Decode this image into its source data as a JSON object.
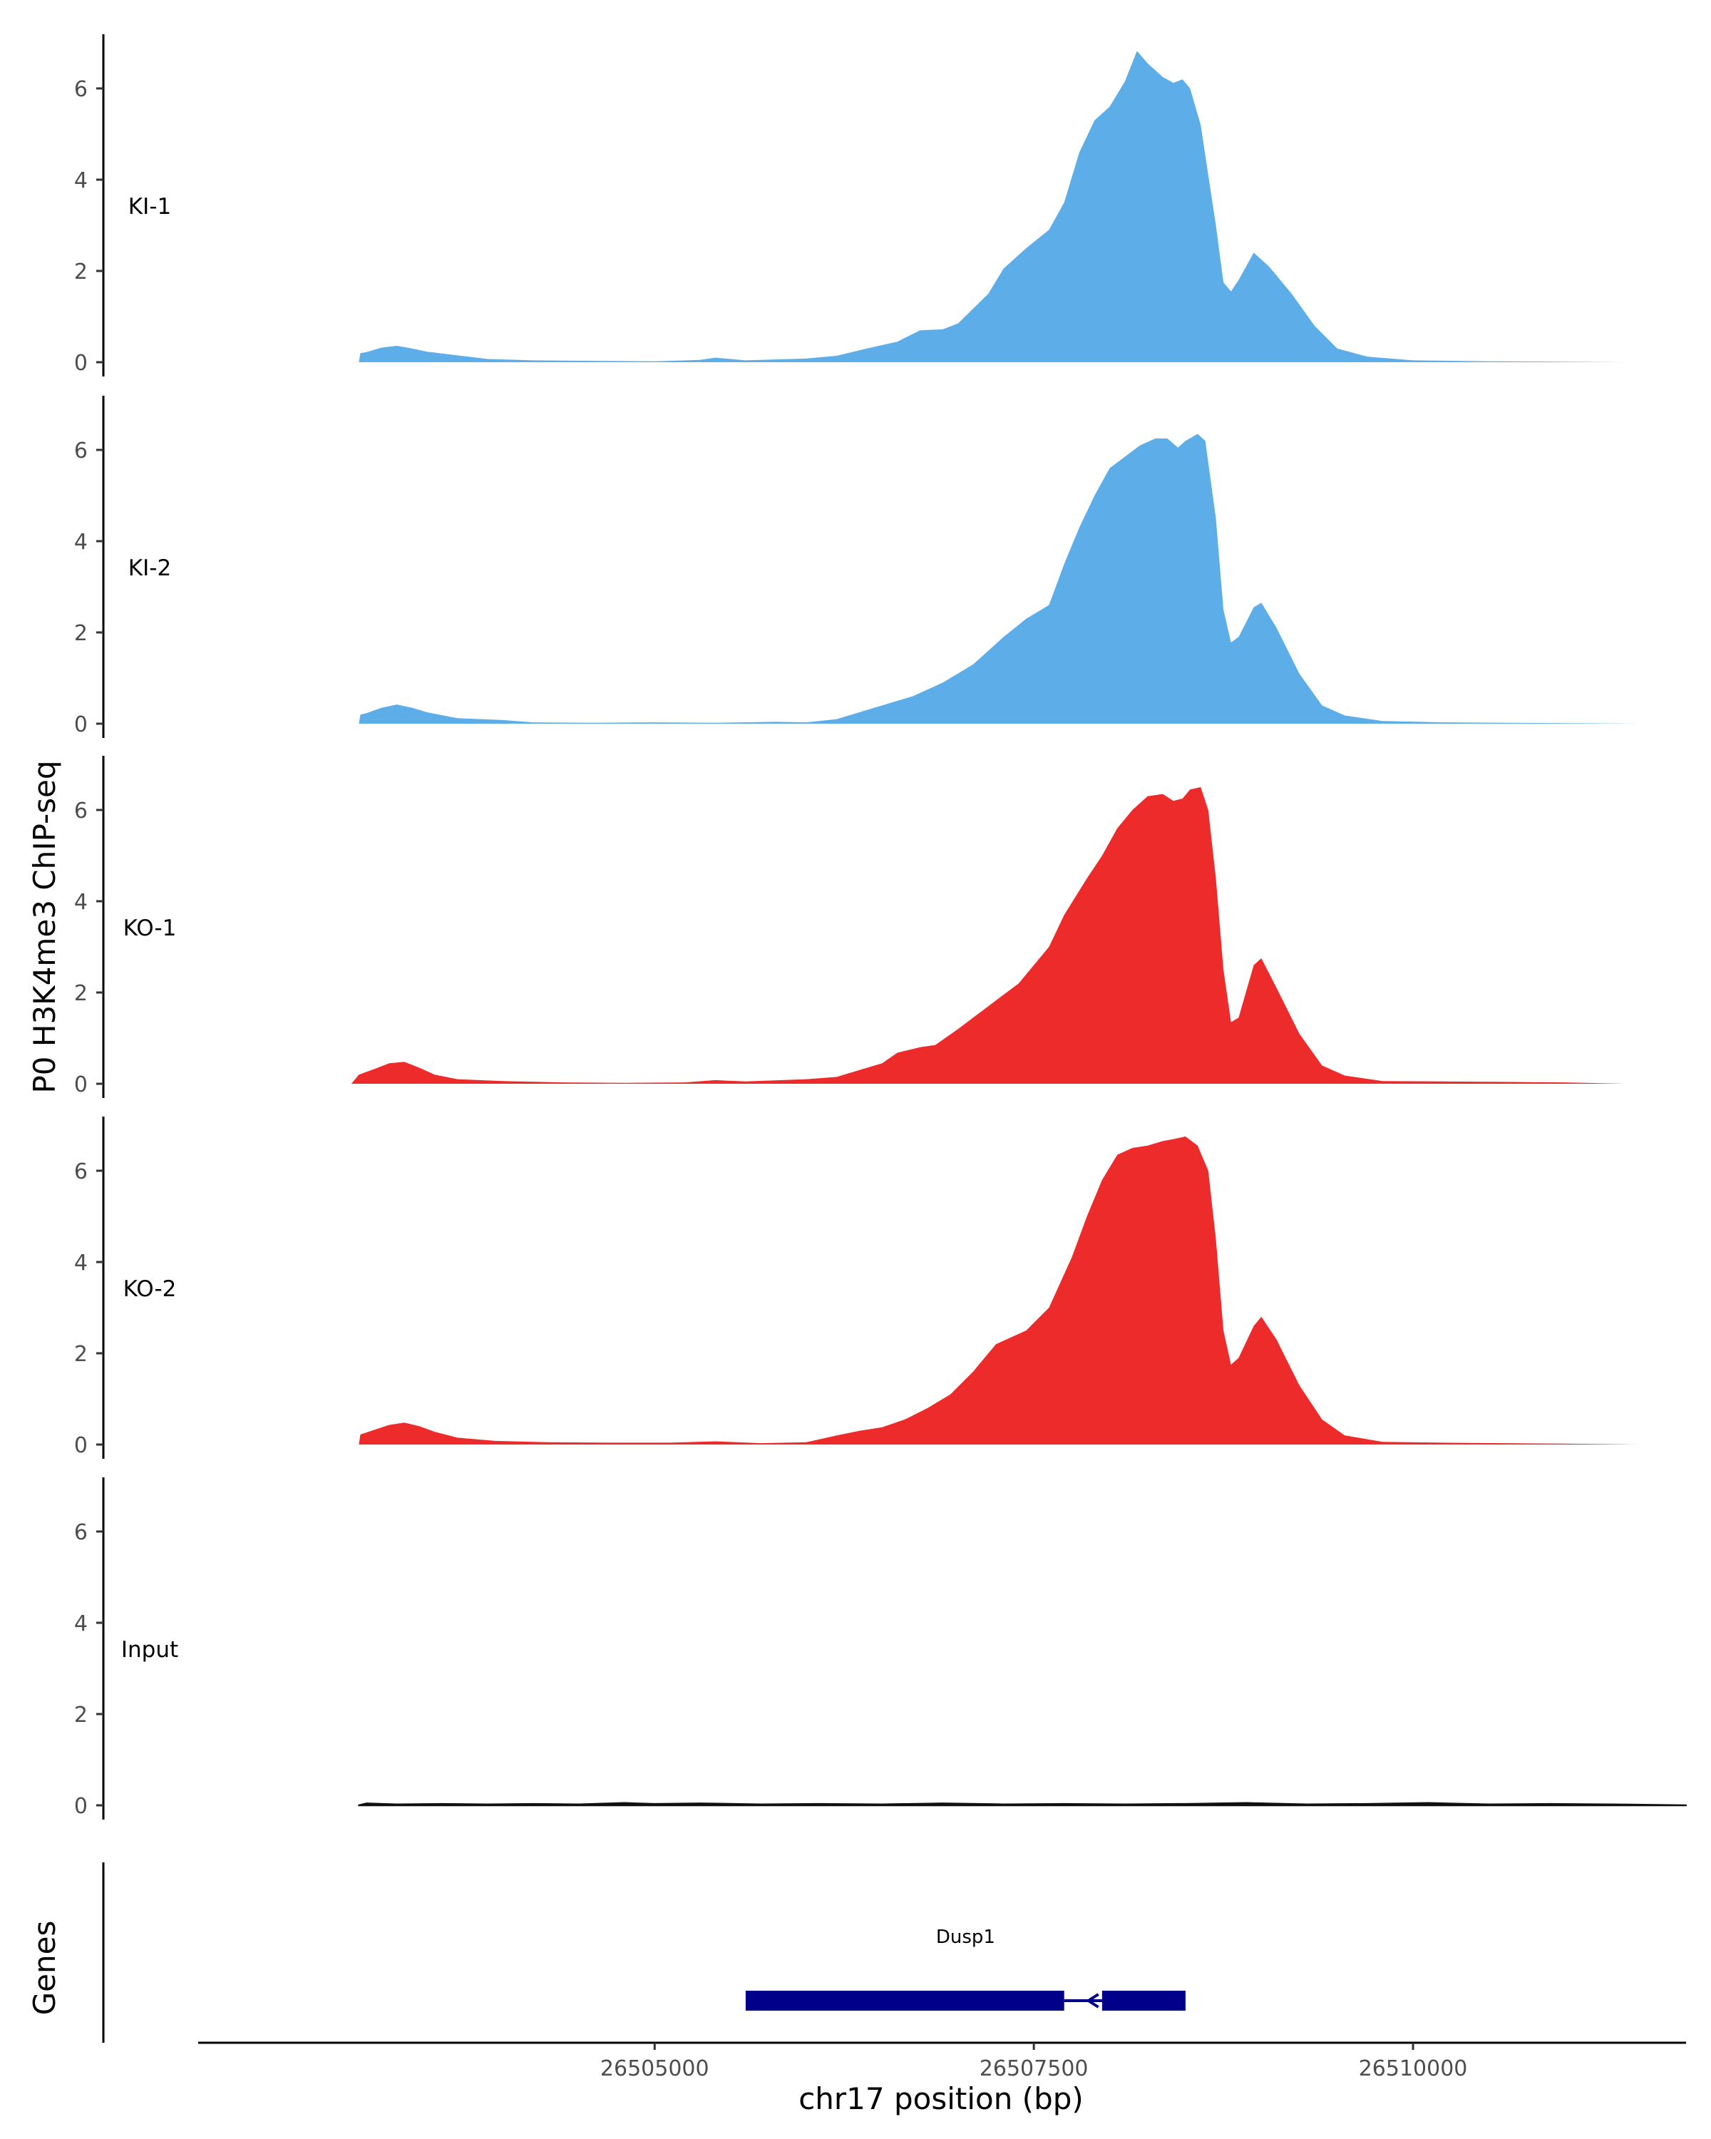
{
  "chart_data": {
    "type": "area",
    "y_axis_title": "P0 H3K4me3 ChIP-seq",
    "x_axis_title": "chr17 position (bp)",
    "genes_axis_title": "Genes",
    "xlim": [
      26502000,
      26511800
    ],
    "ylim": [
      0,
      7.1
    ],
    "y_ticks": [
      0,
      2,
      4,
      6
    ],
    "x_ticks": [
      26505000,
      26507500,
      26510000
    ],
    "x_tick_labels": [
      "26505000",
      "26507500",
      "26510000"
    ],
    "colors": {
      "KI": "#5dade9",
      "KO": "#ee2b2b",
      "Input": "#111111",
      "gene": "#00008b"
    },
    "tracks": [
      {
        "name": "KI-1",
        "color": "#5dade9",
        "points": [
          [
            26503050,
            0
          ],
          [
            26503060,
            0.2
          ],
          [
            26503100,
            0.22
          ],
          [
            26503200,
            0.32
          ],
          [
            26503300,
            0.36
          ],
          [
            26503400,
            0.3
          ],
          [
            26503500,
            0.23
          ],
          [
            26503700,
            0.15
          ],
          [
            26503900,
            0.07
          ],
          [
            26504200,
            0.04
          ],
          [
            26504600,
            0.03
          ],
          [
            26505000,
            0.02
          ],
          [
            26505300,
            0.05
          ],
          [
            26505400,
            0.1
          ],
          [
            26505600,
            0.04
          ],
          [
            26506000,
            0.08
          ],
          [
            26506200,
            0.14
          ],
          [
            26506400,
            0.3
          ],
          [
            26506600,
            0.45
          ],
          [
            26506750,
            0.7
          ],
          [
            26506900,
            0.72
          ],
          [
            26507000,
            0.85
          ],
          [
            26507200,
            1.5
          ],
          [
            26507300,
            2.05
          ],
          [
            26507450,
            2.5
          ],
          [
            26507600,
            2.9
          ],
          [
            26507700,
            3.5
          ],
          [
            26507800,
            4.6
          ],
          [
            26507900,
            5.3
          ],
          [
            26508000,
            5.6
          ],
          [
            26508100,
            6.15
          ],
          [
            26508180,
            6.82
          ],
          [
            26508250,
            6.55
          ],
          [
            26508350,
            6.25
          ],
          [
            26508420,
            6.12
          ],
          [
            26508480,
            6.2
          ],
          [
            26508530,
            6.0
          ],
          [
            26508600,
            5.2
          ],
          [
            26508700,
            3.0
          ],
          [
            26508750,
            1.75
          ],
          [
            26508800,
            1.55
          ],
          [
            26508850,
            1.8
          ],
          [
            26508950,
            2.4
          ],
          [
            26509050,
            2.1
          ],
          [
            26509200,
            1.5
          ],
          [
            26509350,
            0.8
          ],
          [
            26509500,
            0.3
          ],
          [
            26509700,
            0.12
          ],
          [
            26510000,
            0.04
          ],
          [
            26510500,
            0.02
          ],
          [
            26511000,
            0.01
          ],
          [
            26511400,
            0
          ],
          [
            26511800,
            0
          ]
        ]
      },
      {
        "name": "KI-2",
        "color": "#5dade9",
        "points": [
          [
            26503050,
            0
          ],
          [
            26503060,
            0.2
          ],
          [
            26503100,
            0.23
          ],
          [
            26503200,
            0.35
          ],
          [
            26503300,
            0.42
          ],
          [
            26503400,
            0.35
          ],
          [
            26503500,
            0.25
          ],
          [
            26503700,
            0.12
          ],
          [
            26504000,
            0.08
          ],
          [
            26504200,
            0.03
          ],
          [
            26504600,
            0.02
          ],
          [
            26505000,
            0.03
          ],
          [
            26505400,
            0.02
          ],
          [
            26505800,
            0.04
          ],
          [
            26506000,
            0.03
          ],
          [
            26506200,
            0.1
          ],
          [
            26506400,
            0.3
          ],
          [
            26506700,
            0.6
          ],
          [
            26506900,
            0.9
          ],
          [
            26507100,
            1.3
          ],
          [
            26507300,
            1.9
          ],
          [
            26507450,
            2.3
          ],
          [
            26507600,
            2.6
          ],
          [
            26507700,
            3.5
          ],
          [
            26507800,
            4.3
          ],
          [
            26507900,
            5.0
          ],
          [
            26508000,
            5.6
          ],
          [
            26508100,
            5.85
          ],
          [
            26508200,
            6.1
          ],
          [
            26508300,
            6.25
          ],
          [
            26508380,
            6.25
          ],
          [
            26508450,
            6.05
          ],
          [
            26508500,
            6.2
          ],
          [
            26508580,
            6.35
          ],
          [
            26508630,
            6.2
          ],
          [
            26508700,
            4.5
          ],
          [
            26508750,
            2.5
          ],
          [
            26508800,
            1.78
          ],
          [
            26508850,
            1.9
          ],
          [
            26508950,
            2.55
          ],
          [
            26509000,
            2.65
          ],
          [
            26509100,
            2.1
          ],
          [
            26509250,
            1.1
          ],
          [
            26509400,
            0.4
          ],
          [
            26509550,
            0.18
          ],
          [
            26509800,
            0.06
          ],
          [
            26510200,
            0.03
          ],
          [
            26510600,
            0.02
          ],
          [
            26511100,
            0.01
          ],
          [
            26511500,
            0
          ],
          [
            26511800,
            0
          ]
        ]
      },
      {
        "name": "KO-1",
        "color": "#ee2b2b",
        "points": [
          [
            26503000,
            0
          ],
          [
            26503050,
            0.2
          ],
          [
            26503150,
            0.32
          ],
          [
            26503250,
            0.45
          ],
          [
            26503350,
            0.48
          ],
          [
            26503450,
            0.35
          ],
          [
            26503550,
            0.2
          ],
          [
            26503700,
            0.1
          ],
          [
            26504000,
            0.06
          ],
          [
            26504400,
            0.03
          ],
          [
            26504800,
            0.02
          ],
          [
            26505200,
            0.03
          ],
          [
            26505400,
            0.08
          ],
          [
            26505600,
            0.05
          ],
          [
            26506000,
            0.1
          ],
          [
            26506200,
            0.15
          ],
          [
            26506350,
            0.3
          ],
          [
            26506500,
            0.45
          ],
          [
            26506600,
            0.68
          ],
          [
            26506750,
            0.8
          ],
          [
            26506850,
            0.85
          ],
          [
            26507000,
            1.2
          ],
          [
            26507200,
            1.7
          ],
          [
            26507400,
            2.2
          ],
          [
            26507600,
            3.0
          ],
          [
            26507700,
            3.7
          ],
          [
            26507850,
            4.5
          ],
          [
            26507950,
            5.0
          ],
          [
            26508050,
            5.6
          ],
          [
            26508150,
            6.0
          ],
          [
            26508250,
            6.3
          ],
          [
            26508350,
            6.35
          ],
          [
            26508420,
            6.2
          ],
          [
            26508480,
            6.25
          ],
          [
            26508530,
            6.45
          ],
          [
            26508600,
            6.5
          ],
          [
            26508650,
            6.0
          ],
          [
            26508700,
            4.5
          ],
          [
            26508750,
            2.5
          ],
          [
            26508800,
            1.35
          ],
          [
            26508850,
            1.45
          ],
          [
            26508950,
            2.6
          ],
          [
            26509000,
            2.75
          ],
          [
            26509100,
            2.1
          ],
          [
            26509250,
            1.1
          ],
          [
            26509400,
            0.4
          ],
          [
            26509550,
            0.18
          ],
          [
            26509800,
            0.06
          ],
          [
            26510200,
            0.05
          ],
          [
            26510600,
            0.04
          ],
          [
            26511000,
            0.03
          ],
          [
            26511400,
            0
          ],
          [
            26511800,
            0
          ]
        ]
      },
      {
        "name": "KO-2",
        "color": "#ee2b2b",
        "points": [
          [
            26503050,
            0
          ],
          [
            26503060,
            0.22
          ],
          [
            26503150,
            0.32
          ],
          [
            26503250,
            0.43
          ],
          [
            26503350,
            0.48
          ],
          [
            26503450,
            0.4
          ],
          [
            26503550,
            0.28
          ],
          [
            26503700,
            0.15
          ],
          [
            26503950,
            0.08
          ],
          [
            26504300,
            0.05
          ],
          [
            26504700,
            0.04
          ],
          [
            26505100,
            0.04
          ],
          [
            26505400,
            0.07
          ],
          [
            26505700,
            0.03
          ],
          [
            26506000,
            0.05
          ],
          [
            26506200,
            0.2
          ],
          [
            26506350,
            0.3
          ],
          [
            26506500,
            0.38
          ],
          [
            26506650,
            0.55
          ],
          [
            26506800,
            0.8
          ],
          [
            26506950,
            1.1
          ],
          [
            26507100,
            1.6
          ],
          [
            26507250,
            2.2
          ],
          [
            26507450,
            2.5
          ],
          [
            26507600,
            3.0
          ],
          [
            26507750,
            4.1
          ],
          [
            26507850,
            5.0
          ],
          [
            26507950,
            5.8
          ],
          [
            26508050,
            6.35
          ],
          [
            26508150,
            6.5
          ],
          [
            26508250,
            6.55
          ],
          [
            26508350,
            6.65
          ],
          [
            26508430,
            6.7
          ],
          [
            26508500,
            6.75
          ],
          [
            26508580,
            6.55
          ],
          [
            26508650,
            6.0
          ],
          [
            26508700,
            4.5
          ],
          [
            26508750,
            2.5
          ],
          [
            26508800,
            1.75
          ],
          [
            26508850,
            1.9
          ],
          [
            26508950,
            2.6
          ],
          [
            26509000,
            2.8
          ],
          [
            26509100,
            2.3
          ],
          [
            26509250,
            1.3
          ],
          [
            26509400,
            0.55
          ],
          [
            26509550,
            0.2
          ],
          [
            26509800,
            0.06
          ],
          [
            26510200,
            0.04
          ],
          [
            26510600,
            0.03
          ],
          [
            26511000,
            0.02
          ],
          [
            26511500,
            0
          ],
          [
            26511800,
            0
          ]
        ]
      },
      {
        "name": "Input",
        "color": "#111111",
        "points": [
          [
            26503050,
            0
          ],
          [
            26503100,
            0.04
          ],
          [
            26503300,
            0.02
          ],
          [
            26503600,
            0.03
          ],
          [
            26503900,
            0.02
          ],
          [
            26504200,
            0.03
          ],
          [
            26504500,
            0.02
          ],
          [
            26504800,
            0.05
          ],
          [
            26505000,
            0.03
          ],
          [
            26505300,
            0.04
          ],
          [
            26505700,
            0.02
          ],
          [
            26506100,
            0.03
          ],
          [
            26506500,
            0.02
          ],
          [
            26506900,
            0.04
          ],
          [
            26507300,
            0.02
          ],
          [
            26507700,
            0.03
          ],
          [
            26508100,
            0.02
          ],
          [
            26508500,
            0.03
          ],
          [
            26508900,
            0.05
          ],
          [
            26509300,
            0.02
          ],
          [
            26509700,
            0.03
          ],
          [
            26510100,
            0.05
          ],
          [
            26510500,
            0.02
          ],
          [
            26510900,
            0.03
          ],
          [
            26511300,
            0.02
          ],
          [
            26511800,
            0
          ]
        ]
      }
    ],
    "gene": {
      "name": "Dusp1",
      "start": 26505600,
      "end": 26508500,
      "exons": [
        [
          26505600,
          26507700
        ],
        [
          26507950,
          26508500
        ]
      ],
      "intron": [
        26507700,
        26507950
      ],
      "strand": "-"
    }
  }
}
